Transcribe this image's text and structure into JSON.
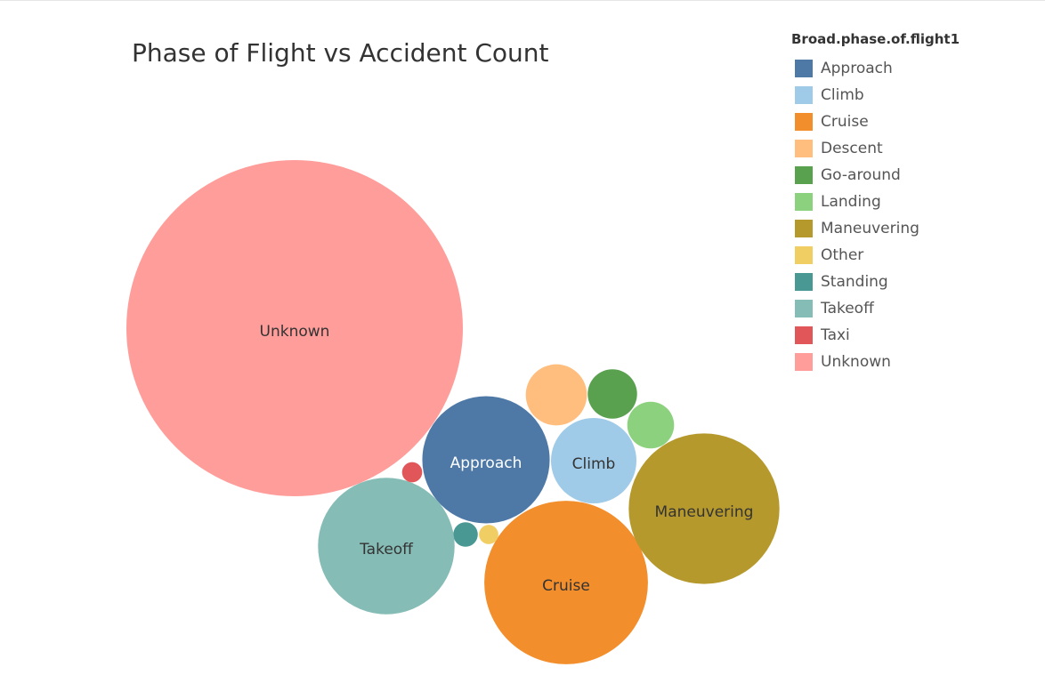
{
  "chart_data": {
    "type": "bubble",
    "title": "Phase of Flight vs Accident Count",
    "legend": {
      "title": "Broad.phase.of.flight1",
      "placement": "top-right"
    },
    "categories": [
      "Approach",
      "Climb",
      "Cruise",
      "Descent",
      "Go-around",
      "Landing",
      "Maneuvering",
      "Other",
      "Standing",
      "Takeoff",
      "Taxi",
      "Unknown"
    ],
    "values": [
      1000,
      450,
      1650,
      230,
      150,
      135,
      1400,
      23,
      37,
      1150,
      25,
      6975
    ],
    "colors": [
      "#4e79a7",
      "#a0cbe8",
      "#f28e2b",
      "#ffbe7d",
      "#59a14f",
      "#8cd17d",
      "#b6992d",
      "#f1ce63",
      "#499894",
      "#86bcb6",
      "#e15759",
      "#ff9d9a"
    ],
    "bubble_labels": {
      "Approach": "Approach",
      "Climb": "Climb",
      "Cruise": "Cruise",
      "Maneuvering": "Maneuvering",
      "Takeoff": "Takeoff",
      "Unknown": "Unknown"
    },
    "label_colors": {
      "Approach": "#ffffff",
      "Climb": "#333333",
      "Cruise": "#333333",
      "Maneuvering": "#333333",
      "Takeoff": "#333333",
      "Unknown": "#333333"
    }
  }
}
